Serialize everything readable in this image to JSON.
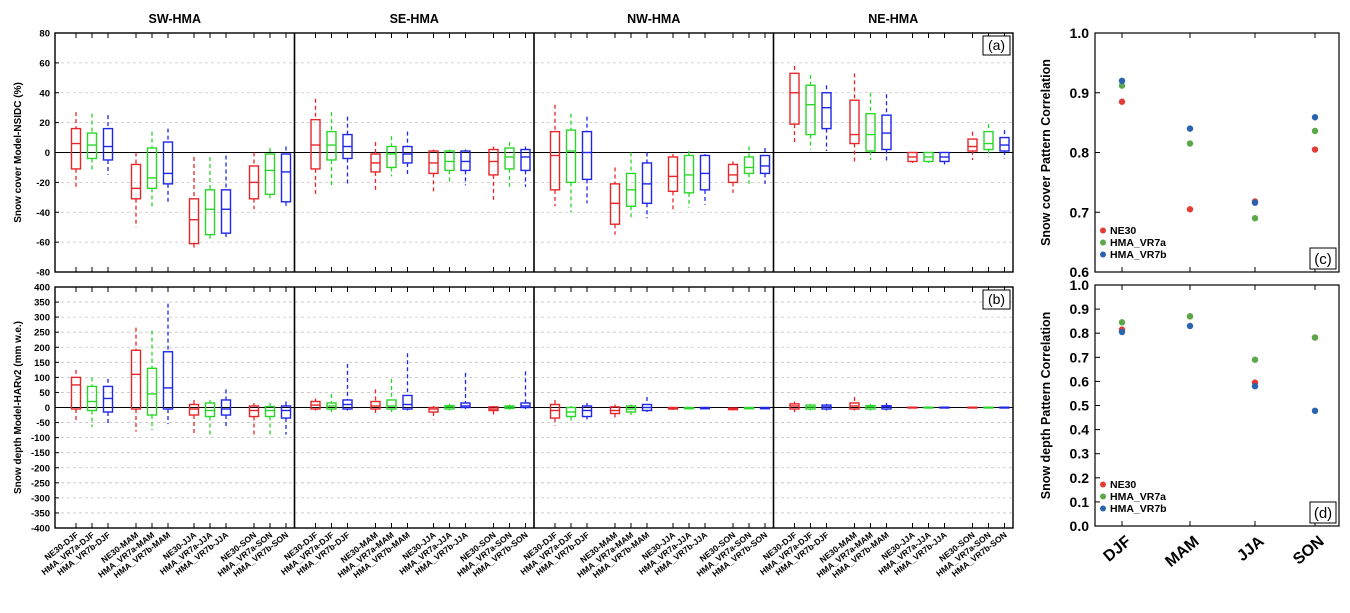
{
  "colors": {
    "NE30": "#e8262a",
    "HMA_VR7a": "#2bd62b",
    "HMA_VR7b": "#1f26e8",
    "dot_NE30": "#e33b36",
    "dot_VR7a": "#5aa84a",
    "dot_VR7b": "#2a63b0"
  },
  "regions": [
    "SW-HMA",
    "SE-HMA",
    "NW-HMA",
    "NE-HMA"
  ],
  "panel_labels": {
    "a": "(a)",
    "b": "(b)",
    "c": "(c)",
    "d": "(d)"
  },
  "x_category_labels": [
    "NE30-DJF",
    "HMA_VR7a-DJF",
    "HMA_VR7b-DJF",
    "NE30-MAM",
    "HMA_VR7a-MAM",
    "HMA_VR7b-MAM",
    "NE30-JJA",
    "HMA_VR7a-JJA",
    "HMA_VR7b-JJA",
    "NE30-SON",
    "HMA_VR7a-SON",
    "HMA_VR7b-SON"
  ],
  "seasons": [
    "DJF",
    "MAM",
    "JJA",
    "SON"
  ],
  "chart_data": [
    {
      "id": "a",
      "type": "box",
      "ylabel": "Snow cover Model-NSIDC (%)",
      "ylim": [
        -80,
        80
      ],
      "yticks": [
        80,
        60,
        40,
        20,
        0,
        -20,
        -40,
        -60,
        -80
      ],
      "grid": true,
      "boxes": {
        "SW-HMA": [
          [
            -24,
            -11,
            6,
            16,
            27
          ],
          [
            -13,
            -4,
            5,
            13,
            26
          ],
          [
            -15,
            -5,
            4,
            16,
            25
          ],
          [
            -50,
            -31,
            -24,
            -8,
            0
          ],
          [
            -37,
            -24,
            -17,
            3,
            14
          ],
          [
            -33,
            -21,
            -14,
            7,
            16
          ],
          [
            -64,
            -61,
            -45,
            -31,
            -3
          ],
          [
            -58,
            -55,
            -38,
            -25,
            -3
          ],
          [
            -57,
            -54,
            -38,
            -25,
            -2
          ],
          [
            -38,
            -31,
            -20,
            -9,
            0
          ],
          [
            -31,
            -28,
            -12,
            -1,
            3
          ],
          [
            -37,
            -33,
            -13,
            -1,
            4
          ]
        ],
        "SE-HMA": [
          [
            -28,
            -11,
            5,
            22,
            36
          ],
          [
            -24,
            -5,
            5,
            14,
            27
          ],
          [
            -22,
            -4,
            4,
            12,
            24
          ],
          [
            -27,
            -13,
            -7,
            -1,
            7
          ],
          [
            -16,
            -10,
            -1,
            4,
            11
          ],
          [
            -15,
            -7,
            -1,
            4,
            14
          ],
          [
            -28,
            -14,
            -7,
            1,
            2
          ],
          [
            -21,
            -12,
            -6,
            1,
            2
          ],
          [
            -22,
            -12,
            -6,
            1,
            2
          ],
          [
            -33,
            -15,
            -6,
            2,
            4
          ],
          [
            -23,
            -11,
            -3,
            3,
            7
          ],
          [
            -23,
            -12,
            -3,
            2,
            4
          ]
        ],
        "NW-HMA": [
          [
            -36,
            -25,
            -2,
            14,
            32
          ],
          [
            -40,
            -20,
            1,
            15,
            26
          ],
          [
            -34,
            -18,
            0,
            14,
            24
          ],
          [
            -55,
            -48,
            -34,
            -21,
            -10
          ],
          [
            -45,
            -36,
            -25,
            -14,
            0
          ],
          [
            -44,
            -34,
            -21,
            -7,
            0
          ],
          [
            -38,
            -26,
            -16,
            -3,
            -1
          ],
          [
            -37,
            -27,
            -15,
            -2,
            1
          ],
          [
            -35,
            -25,
            -14,
            -2,
            -1
          ],
          [
            -27,
            -20,
            -15,
            -8,
            -6
          ],
          [
            -21,
            -14,
            -10,
            -3,
            4
          ],
          [
            -21,
            -14,
            -9,
            -2,
            3
          ]
        ],
        "NE-HMA": [
          [
            5,
            19,
            40,
            53,
            58
          ],
          [
            2,
            12,
            32,
            45,
            52
          ],
          [
            1,
            16,
            30,
            40,
            45
          ],
          [
            -7,
            6,
            12,
            35,
            53
          ],
          [
            -5,
            1,
            12,
            26,
            40
          ],
          [
            -7,
            2,
            13,
            25,
            39
          ],
          [
            -7,
            -6,
            -3,
            0,
            0
          ],
          [
            -7,
            -6,
            -3,
            0,
            0
          ],
          [
            -8,
            -6,
            -3,
            0,
            0
          ],
          [
            -5,
            1,
            4,
            9,
            14
          ],
          [
            -3,
            2,
            6,
            14,
            19
          ],
          [
            -4,
            1,
            5,
            10,
            15
          ]
        ]
      }
    },
    {
      "id": "b",
      "type": "box",
      "ylabel": "Snow depth Model-HARv2 (mm w.e.)",
      "ylim": [
        -400,
        400
      ],
      "yticks": [
        400,
        350,
        300,
        250,
        200,
        150,
        100,
        50,
        0,
        -50,
        -100,
        -150,
        -200,
        -250,
        -300,
        -350,
        -400
      ],
      "grid": true,
      "boxes": {
        "SW-HMA": [
          [
            -50,
            -5,
            75,
            100,
            125
          ],
          [
            -65,
            -10,
            20,
            70,
            100
          ],
          [
            -60,
            -15,
            30,
            70,
            95
          ],
          [
            -80,
            -5,
            110,
            190,
            265
          ],
          [
            -75,
            -25,
            45,
            130,
            255
          ],
          [
            -55,
            -5,
            65,
            185,
            345
          ],
          [
            -90,
            -25,
            -5,
            10,
            25
          ],
          [
            -100,
            -30,
            -10,
            15,
            25
          ],
          [
            -70,
            -25,
            -5,
            25,
            60
          ],
          [
            -90,
            -30,
            -10,
            5,
            15
          ],
          [
            -90,
            -30,
            -10,
            3,
            15
          ],
          [
            -90,
            -35,
            -10,
            5,
            20
          ]
        ],
        "SE-HMA": [
          [
            -10,
            -5,
            8,
            20,
            30
          ],
          [
            -15,
            -5,
            5,
            15,
            45
          ],
          [
            -10,
            -5,
            10,
            25,
            145
          ],
          [
            -20,
            -5,
            5,
            20,
            60
          ],
          [
            -15,
            -5,
            5,
            25,
            95
          ],
          [
            -10,
            -5,
            10,
            40,
            180
          ],
          [
            -40,
            -15,
            -5,
            0,
            5
          ],
          [
            -10,
            -5,
            2,
            6,
            12
          ],
          [
            -5,
            0,
            5,
            15,
            115
          ],
          [
            -30,
            -10,
            -5,
            2,
            5
          ],
          [
            -8,
            -3,
            2,
            5,
            10
          ],
          [
            -5,
            0,
            5,
            15,
            120
          ]
        ],
        "NW-HMA": [
          [
            -60,
            -35,
            -10,
            10,
            25
          ],
          [
            -45,
            -30,
            -15,
            0,
            5
          ],
          [
            -40,
            -30,
            -10,
            5,
            15
          ],
          [
            -35,
            -20,
            -10,
            2,
            10
          ],
          [
            -25,
            -15,
            -5,
            5,
            10
          ],
          [
            -15,
            -10,
            0,
            10,
            35
          ],
          [
            -8,
            -5,
            -2,
            0,
            2
          ],
          [
            -6,
            -4,
            -2,
            0,
            2
          ],
          [
            -6,
            -4,
            -2,
            0,
            2
          ],
          [
            -10,
            -7,
            -4,
            -2,
            0
          ],
          [
            -6,
            -4,
            -2,
            0,
            2
          ],
          [
            -6,
            -4,
            -2,
            0,
            2
          ]
        ],
        "NE-HMA": [
          [
            -15,
            -5,
            5,
            12,
            20
          ],
          [
            -10,
            -5,
            2,
            8,
            12
          ],
          [
            -10,
            -5,
            2,
            8,
            12
          ],
          [
            -10,
            -5,
            5,
            15,
            35
          ],
          [
            -10,
            -5,
            2,
            6,
            12
          ],
          [
            -10,
            -5,
            2,
            6,
            15
          ],
          [
            -2,
            -1,
            0,
            1,
            2
          ],
          [
            -2,
            -1,
            0,
            1,
            2
          ],
          [
            -2,
            -1,
            0,
            1,
            2
          ],
          [
            -2,
            -1,
            0,
            1,
            2
          ],
          [
            -2,
            -1,
            0,
            1,
            2
          ],
          [
            -2,
            -1,
            0,
            1,
            2
          ]
        ]
      }
    },
    {
      "id": "c",
      "type": "scatter",
      "ylabel": "Snow cover Pattern Correlation",
      "ylim": [
        0.6,
        1.0
      ],
      "yticks": [
        1.0,
        0.9,
        0.8,
        0.7,
        0.6
      ],
      "categories": [
        "DJF",
        "MAM",
        "JJA",
        "SON"
      ],
      "series": [
        {
          "name": "NE30",
          "values": [
            0.885,
            0.705,
            0.718,
            0.805
          ]
        },
        {
          "name": "HMA_VR7a",
          "values": [
            0.912,
            0.815,
            0.69,
            0.836
          ]
        },
        {
          "name": "HMA_VR7b",
          "values": [
            0.92,
            0.84,
            0.716,
            0.859
          ]
        }
      ],
      "legend": "bottom-left"
    },
    {
      "id": "d",
      "type": "scatter",
      "ylabel": "Snow depth Pattern Correlation",
      "ylim": [
        0.0,
        1.0
      ],
      "yticks": [
        1.0,
        0.9,
        0.8,
        0.7,
        0.6,
        0.5,
        0.4,
        0.3,
        0.2,
        0.1,
        0.0
      ],
      "categories": [
        "DJF",
        "MAM",
        "JJA",
        "SON"
      ],
      "series": [
        {
          "name": "NE30",
          "values": [
            0.815,
            0.87,
            0.595,
            0.782
          ]
        },
        {
          "name": "HMA_VR7a",
          "values": [
            0.845,
            0.87,
            0.69,
            0.782
          ]
        },
        {
          "name": "HMA_VR7b",
          "values": [
            0.805,
            0.83,
            0.58,
            0.478
          ]
        }
      ],
      "legend": "bottom-left"
    }
  ]
}
